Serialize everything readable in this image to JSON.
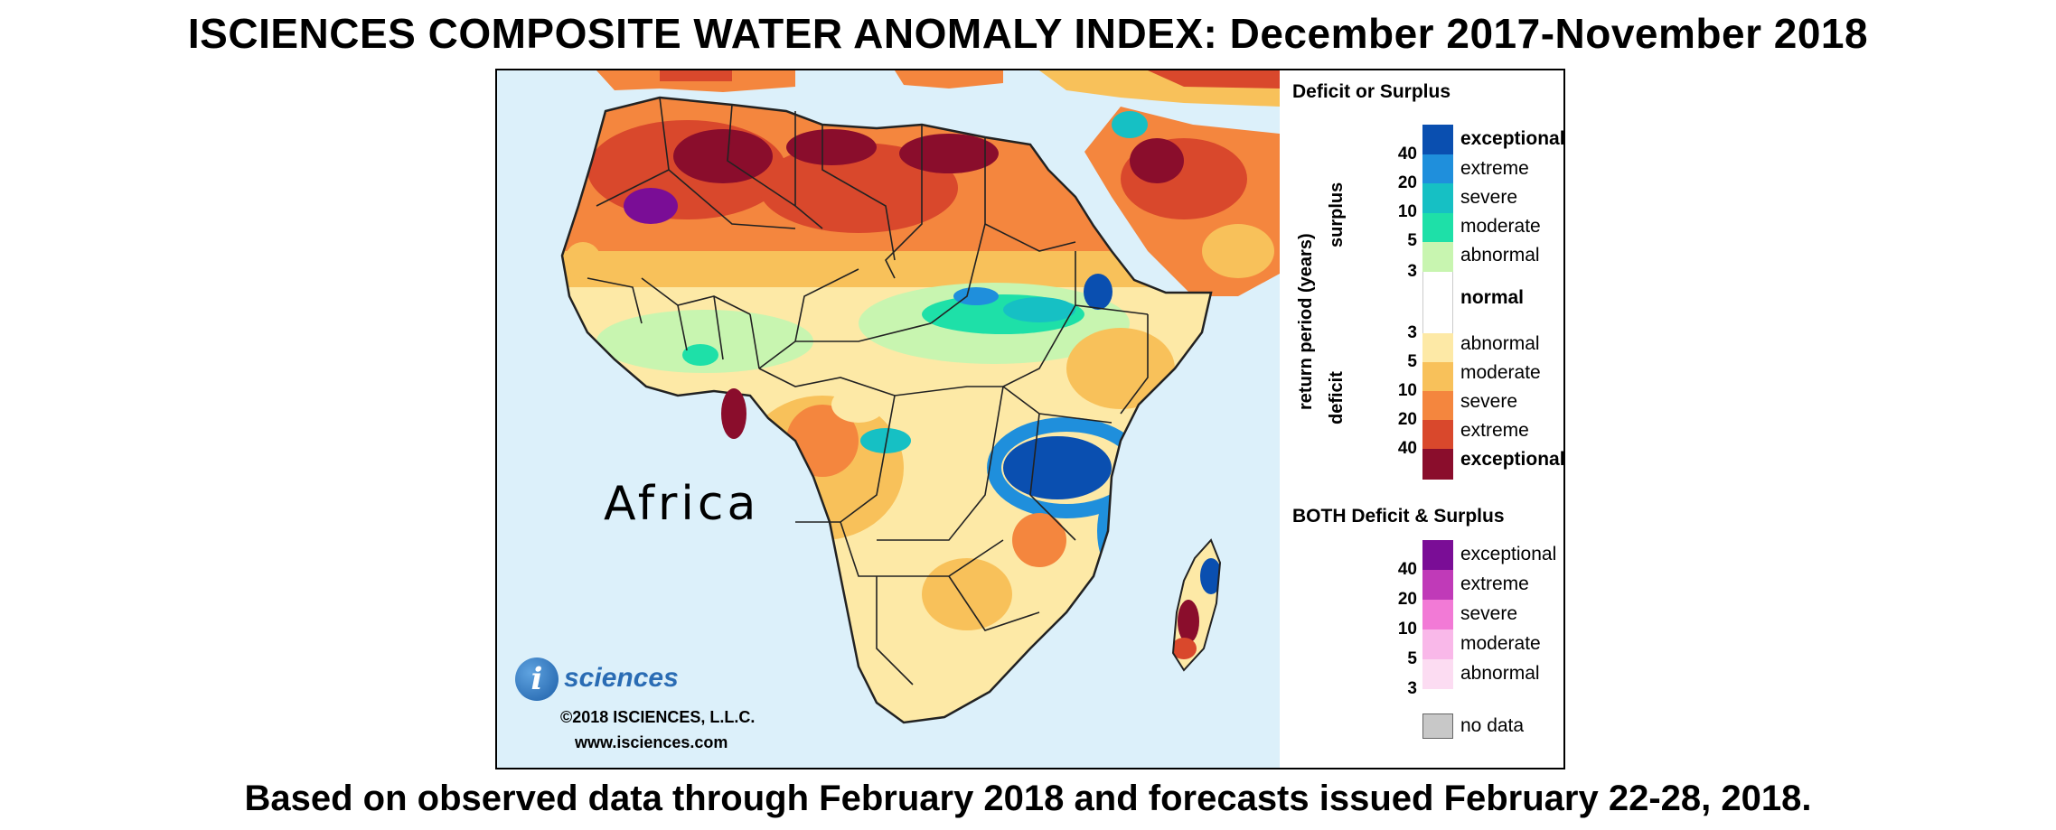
{
  "title": "ISCIENCES COMPOSITE WATER ANOMALY INDEX: December 2017-November 2018",
  "footer": "Based on observed data through February 2018 and forecasts issued February 22-28, 2018.",
  "map": {
    "continent_label": "Africa",
    "ocean_color": "#dcf0fa"
  },
  "logo": {
    "letter": "i",
    "word": "sciences",
    "copyright": "©2018 ISCIENCES, L.L.C.",
    "url": "www.isciences.com"
  },
  "legend": {
    "heading": "Deficit or Surplus",
    "axis_label": "return period (years)",
    "surplus_label": "surplus",
    "deficit_label": "deficit",
    "surplus_ticks": [
      "40",
      "20",
      "10",
      "5",
      "3"
    ],
    "deficit_ticks": [
      "3",
      "5",
      "10",
      "20",
      "40"
    ],
    "surplus": [
      {
        "label": "exceptional",
        "color": "#0a4fb0",
        "bold": true
      },
      {
        "label": "extreme",
        "color": "#1f8fdc"
      },
      {
        "label": "severe",
        "color": "#16c0c4"
      },
      {
        "label": "moderate",
        "color": "#1ee0a8"
      },
      {
        "label": "abnormal",
        "color": "#c8f5b0"
      }
    ],
    "normal": {
      "label": "normal",
      "color": "#ffffff"
    },
    "deficit": [
      {
        "label": "abnormal",
        "color": "#fde9a6"
      },
      {
        "label": "moderate",
        "color": "#f8c15a"
      },
      {
        "label": "severe",
        "color": "#f4863e"
      },
      {
        "label": "extreme",
        "color": "#d9482c"
      },
      {
        "label": "exceptional",
        "color": "#8a0d2c",
        "bold": true
      }
    ],
    "both_heading": "BOTH Deficit & Surplus",
    "both_ticks": [
      "40",
      "20",
      "10",
      "5",
      "3"
    ],
    "both": [
      {
        "label": "exceptional",
        "color": "#7a0d96"
      },
      {
        "label": "extreme",
        "color": "#c03ab8"
      },
      {
        "label": "severe",
        "color": "#f27ad6"
      },
      {
        "label": "moderate",
        "color": "#f9b8e9"
      },
      {
        "label": "abnormal",
        "color": "#fcdcf2"
      }
    ],
    "no_data": {
      "label": "no data",
      "color": "#c8c8c8"
    }
  }
}
